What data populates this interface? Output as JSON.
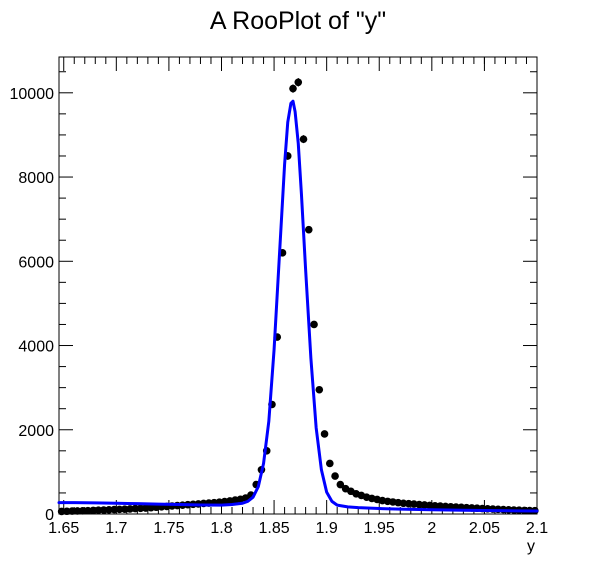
{
  "chart_data": {
    "type": "scatter",
    "title": "A RooPlot of \"y\"",
    "xlabel": "y",
    "ylabel": "",
    "xlim": [
      1.6455,
      2.1
    ],
    "ylim": [
      0,
      10850
    ],
    "grid": false,
    "legend": "none",
    "x_ticks": [
      {
        "value": 1.65,
        "label": "1.65"
      },
      {
        "value": 1.7,
        "label": "1.7"
      },
      {
        "value": 1.75,
        "label": "1.75"
      },
      {
        "value": 1.8,
        "label": "1.8"
      },
      {
        "value": 1.85,
        "label": "1.85"
      },
      {
        "value": 1.9,
        "label": "1.9"
      },
      {
        "value": 1.95,
        "label": "1.95"
      },
      {
        "value": 2.0,
        "label": "2"
      },
      {
        "value": 2.05,
        "label": "2.05"
      },
      {
        "value": 2.1,
        "label": "2.1"
      }
    ],
    "y_ticks": [
      {
        "value": 0,
        "label": "0"
      },
      {
        "value": 2000,
        "label": "2000"
      },
      {
        "value": 4000,
        "label": "4000"
      },
      {
        "value": 6000,
        "label": "6000"
      },
      {
        "value": 8000,
        "label": "8000"
      },
      {
        "value": 10000,
        "label": "10000"
      }
    ],
    "series": [
      {
        "kind": "points",
        "color": "#000000",
        "x": [
          1.648,
          1.653,
          1.658,
          1.663,
          1.668,
          1.673,
          1.678,
          1.683,
          1.688,
          1.693,
          1.698,
          1.703,
          1.708,
          1.713,
          1.718,
          1.723,
          1.728,
          1.733,
          1.738,
          1.743,
          1.748,
          1.753,
          1.758,
          1.763,
          1.768,
          1.773,
          1.778,
          1.783,
          1.788,
          1.793,
          1.798,
          1.803,
          1.808,
          1.813,
          1.818,
          1.823,
          1.828,
          1.833,
          1.838,
          1.843,
          1.848,
          1.853,
          1.858,
          1.863,
          1.868,
          1.873,
          1.878,
          1.883,
          1.888,
          1.893,
          1.898,
          1.903,
          1.908,
          1.913,
          1.918,
          1.923,
          1.928,
          1.933,
          1.938,
          1.943,
          1.948,
          1.953,
          1.958,
          1.963,
          1.968,
          1.973,
          1.978,
          1.983,
          1.988,
          1.993,
          1.998,
          2.003,
          2.008,
          2.013,
          2.018,
          2.023,
          2.028,
          2.033,
          2.038,
          2.043,
          2.048,
          2.053,
          2.058,
          2.063,
          2.068,
          2.073,
          2.078,
          2.083,
          2.088,
          2.093,
          2.098
        ],
        "y": [
          60,
          65,
          70,
          72,
          75,
          80,
          85,
          90,
          95,
          100,
          105,
          110,
          115,
          120,
          128,
          135,
          140,
          150,
          160,
          170,
          180,
          190,
          200,
          210,
          220,
          230,
          240,
          250,
          260,
          270,
          280,
          295,
          310,
          330,
          350,
          380,
          450,
          700,
          1050,
          1500,
          2600,
          4200,
          6200,
          8500,
          10100,
          10250,
          8900,
          6750,
          4500,
          2950,
          1900,
          1200,
          900,
          700,
          600,
          540,
          480,
          440,
          400,
          370,
          345,
          320,
          300,
          285,
          270,
          255,
          245,
          235,
          225,
          215,
          205,
          195,
          188,
          180,
          172,
          165,
          158,
          150,
          143,
          137,
          130,
          124,
          118,
          112,
          106,
          100,
          95,
          90,
          86,
          82,
          78
        ]
      },
      {
        "kind": "line",
        "color": "#0000ff",
        "x": [
          1.6455,
          1.66,
          1.68,
          1.7,
          1.72,
          1.74,
          1.76,
          1.78,
          1.8,
          1.81,
          1.82,
          1.825,
          1.83,
          1.835,
          1.84,
          1.845,
          1.85,
          1.855,
          1.86,
          1.863,
          1.866,
          1.868,
          1.87,
          1.873,
          1.876,
          1.88,
          1.885,
          1.89,
          1.895,
          1.9,
          1.905,
          1.91,
          1.92,
          1.93,
          1.95,
          1.97,
          2.0,
          2.03,
          2.06,
          2.08,
          2.1
        ],
        "y": [
          270,
          270,
          265,
          255,
          245,
          235,
          225,
          215,
          210,
          225,
          255,
          300,
          400,
          650,
          1200,
          2200,
          3900,
          6100,
          8300,
          9300,
          9750,
          9800,
          9550,
          8800,
          7600,
          5800,
          3700,
          2050,
          1050,
          520,
          300,
          210,
          170,
          150,
          130,
          115,
          100,
          90,
          80,
          74,
          70
        ]
      }
    ]
  }
}
